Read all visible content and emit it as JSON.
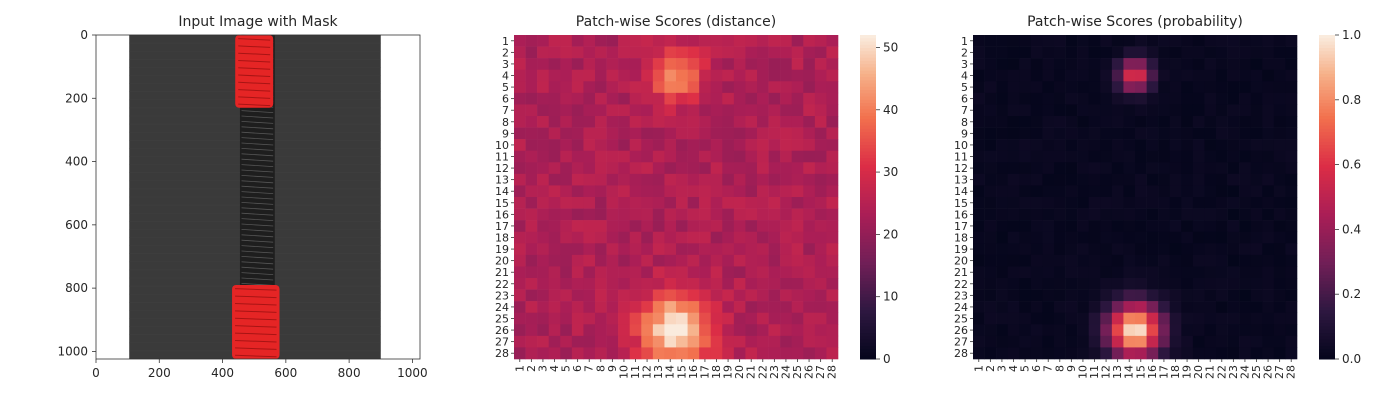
{
  "chart_data": [
    {
      "type": "image",
      "title": "Input Image with Mask",
      "x_ticks": [
        0,
        200,
        400,
        600,
        800,
        1000
      ],
      "y_ticks": [
        0,
        200,
        400,
        600,
        800,
        1000
      ],
      "xlim": [
        0,
        1024
      ],
      "ylim": [
        1024,
        0
      ],
      "image_description_regions": {
        "zipper_tape_color": "#3a3a3a",
        "zipper_teeth_color": "#1e1e1e",
        "mask_color": "#e52525",
        "mask_regions": [
          {
            "name": "top-slider",
            "x_range": [
              440,
              560
            ],
            "y_range": [
              0,
              230
            ]
          },
          {
            "name": "bottom-slider",
            "x_range": [
              430,
              580
            ],
            "y_range": [
              790,
              1024
            ]
          }
        ],
        "tape_x_range": [
          105,
          900
        ]
      }
    },
    {
      "type": "heatmap",
      "title": "Patch-wise Scores (distance)",
      "rows": 28,
      "cols": 28,
      "tick_labels": [
        "1",
        "2",
        "3",
        "4",
        "5",
        "6",
        "7",
        "8",
        "9",
        "10",
        "11",
        "12",
        "13",
        "14",
        "15",
        "16",
        "17",
        "18",
        "19",
        "20",
        "21",
        "22",
        "23",
        "24",
        "25",
        "26",
        "27",
        "28"
      ],
      "colorbar": {
        "min": 0,
        "max": 52,
        "ticks": [
          0,
          10,
          20,
          30,
          40,
          50
        ]
      },
      "colormap": "rocket",
      "base_value": 24,
      "hotspots": [
        {
          "row": 4,
          "col": 14.5,
          "peak": 42,
          "spread": 1.6
        },
        {
          "row": 26,
          "col": 14.5,
          "peak": 52,
          "spread": 2.2
        }
      ]
    },
    {
      "type": "heatmap",
      "title": "Patch-wise Scores (probability)",
      "rows": 28,
      "cols": 28,
      "tick_labels": [
        "1",
        "2",
        "3",
        "4",
        "5",
        "6",
        "7",
        "8",
        "9",
        "10",
        "11",
        "12",
        "13",
        "14",
        "15",
        "16",
        "17",
        "18",
        "19",
        "20",
        "21",
        "22",
        "23",
        "24",
        "25",
        "26",
        "27",
        "28"
      ],
      "colorbar": {
        "min": 0,
        "max": 1,
        "ticks": [
          "0.0",
          "0.2",
          "0.4",
          "0.6",
          "0.8",
          "1.0"
        ]
      },
      "colormap": "rocket",
      "base_value": 0.02,
      "hotspots": [
        {
          "row": 4,
          "col": 14.5,
          "peak": 0.62,
          "spread": 1.0
        },
        {
          "row": 26,
          "col": 14.5,
          "peak": 1.0,
          "spread": 1.6
        }
      ]
    }
  ]
}
